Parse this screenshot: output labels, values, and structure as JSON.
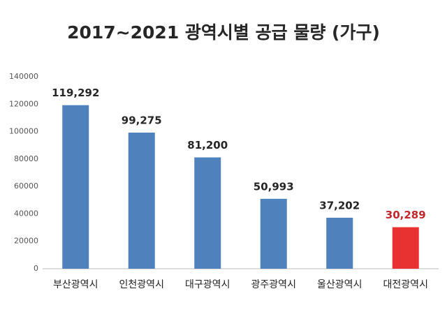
{
  "chart_data": {
    "type": "bar",
    "title": "2017~2021 광역시별 공급 물량 (가구)",
    "categories": [
      "부산광역시",
      "인천광역시",
      "대구광역시",
      "광주광역시",
      "울산광역시",
      "대전광역시"
    ],
    "values": [
      119292,
      99275,
      81200,
      50993,
      37202,
      30289
    ],
    "value_labels": [
      "119,292",
      "99,275",
      "81,200",
      "50,993",
      "37,202",
      "30,289"
    ],
    "colors": [
      "#4f81bd",
      "#4f81bd",
      "#4f81bd",
      "#4f81bd",
      "#4f81bd",
      "#e83232"
    ],
    "value_label_colors": [
      "#262626",
      "#262626",
      "#262626",
      "#262626",
      "#262626",
      "#c0272d"
    ],
    "ylim": [
      0,
      140000
    ],
    "yticks": [
      0,
      20000,
      40000,
      60000,
      80000,
      100000,
      120000,
      140000
    ],
    "grid": false
  }
}
